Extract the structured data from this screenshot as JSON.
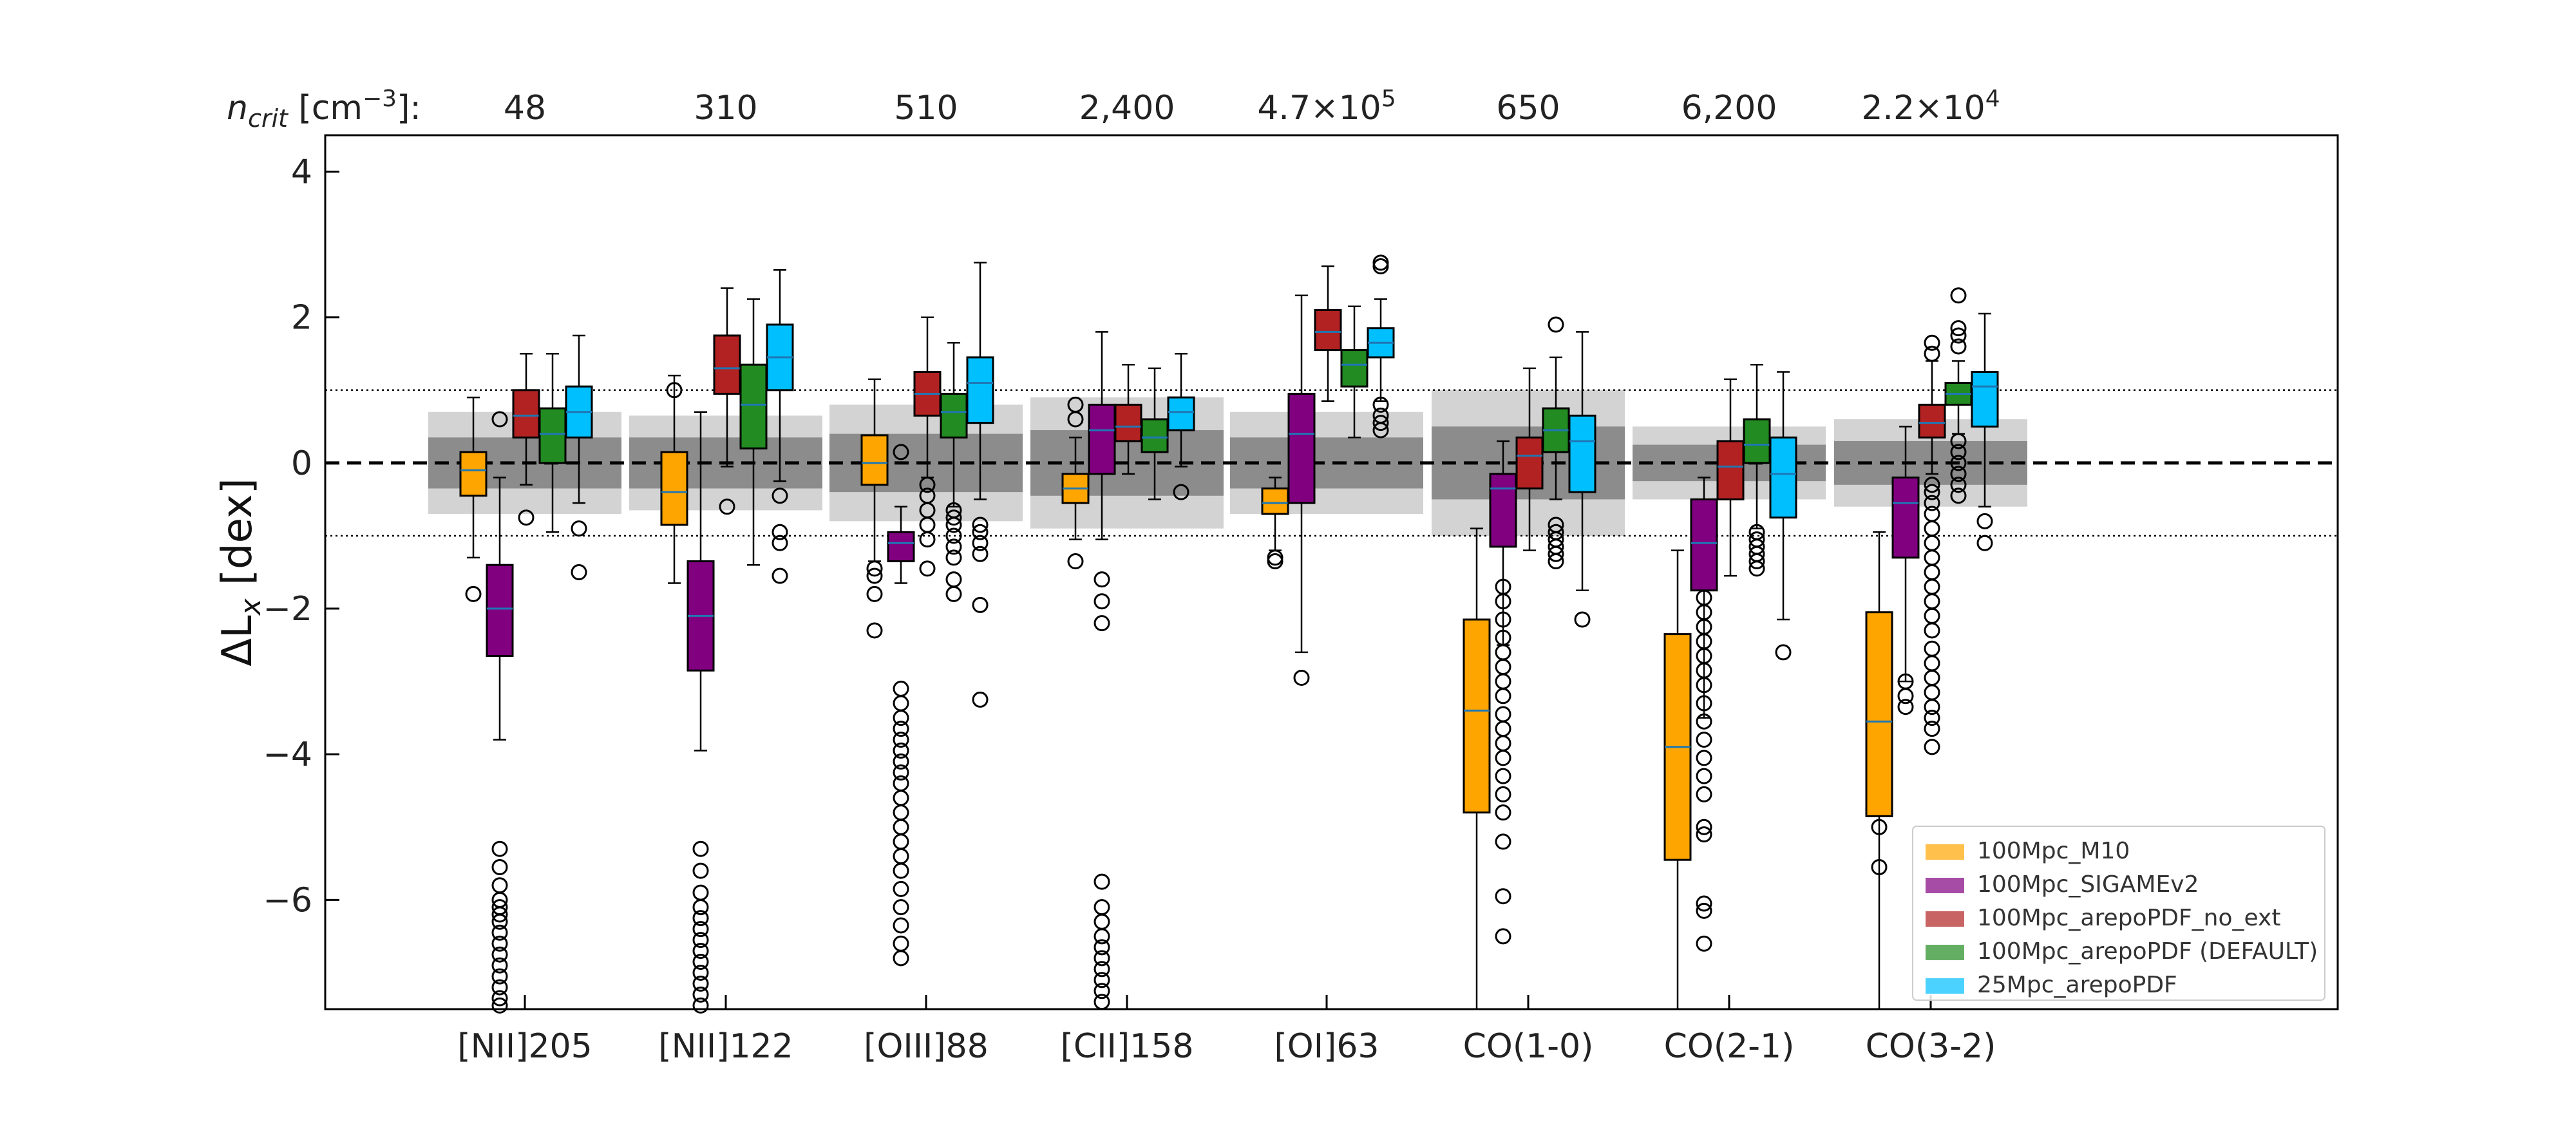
{
  "chart_data": {
    "type": "box",
    "ylabel_main": "ΔL",
    "ylabel_sub": "x",
    "ylabel_unit": " [dex]",
    "ylim": [
      -7.5,
      4.5
    ],
    "yticks": [
      4,
      2,
      0,
      -2,
      -4,
      -6
    ],
    "ytick_labels": [
      "4",
      "2",
      "0",
      "−2",
      "−4",
      "−6"
    ],
    "reference_lines": [
      {
        "y": 0,
        "style": "dashed"
      },
      {
        "y": 1,
        "style": "dotted"
      },
      {
        "y": -1,
        "style": "dotted"
      }
    ],
    "ncrit_header": {
      "prefix": "n",
      "sub": "crit",
      "unit": " [cm",
      "sup": "−3",
      "suffix": "]:"
    },
    "categories": [
      "[NII]205",
      "[NII]122",
      "[OIII]88",
      "[CII]158",
      "[OI]63",
      "CO(1-0)",
      "CO(2-1)",
      "CO(3-2)"
    ],
    "ncrit_labels": [
      {
        "base": "48",
        "exp": ""
      },
      {
        "base": "310",
        "exp": ""
      },
      {
        "base": "510",
        "exp": ""
      },
      {
        "base": "2,400",
        "exp": ""
      },
      {
        "base": "4.7×10",
        "exp": "5"
      },
      {
        "base": "650",
        "exp": ""
      },
      {
        "base": "6,200",
        "exp": ""
      },
      {
        "base": "2.2×10",
        "exp": "4"
      }
    ],
    "obs_bands": [
      {
        "inner": [
          -0.35,
          0.35
        ],
        "outer": [
          -0.7,
          0.7
        ]
      },
      {
        "inner": [
          -0.35,
          0.35
        ],
        "outer": [
          -0.65,
          0.65
        ]
      },
      {
        "inner": [
          -0.4,
          0.4
        ],
        "outer": [
          -0.8,
          0.8
        ]
      },
      {
        "inner": [
          -0.45,
          0.45
        ],
        "outer": [
          -0.9,
          0.9
        ]
      },
      {
        "inner": [
          -0.35,
          0.35
        ],
        "outer": [
          -0.7,
          0.7
        ]
      },
      {
        "inner": [
          -0.5,
          0.5
        ],
        "outer": [
          -1.0,
          1.0
        ]
      },
      {
        "inner": [
          -0.25,
          0.25
        ],
        "outer": [
          -0.5,
          0.5
        ]
      },
      {
        "inner": [
          -0.3,
          0.3
        ],
        "outer": [
          -0.6,
          0.6
        ]
      }
    ],
    "series": [
      {
        "name": "100Mpc_M10",
        "color": "#FFA500",
        "boxes": [
          {
            "q1": -0.45,
            "med": -0.1,
            "q3": 0.15,
            "wl": -1.3,
            "wh": 0.9,
            "fliers": [
              -1.8
            ]
          },
          {
            "q1": -0.85,
            "med": -0.4,
            "q3": 0.15,
            "wl": -1.65,
            "wh": 1.2,
            "fliers": [
              1.0
            ]
          },
          {
            "q1": -0.3,
            "med": 0.0,
            "q3": 0.38,
            "wl": -1.35,
            "wh": 1.15,
            "fliers": [
              -1.45,
              -1.55,
              -1.8,
              -2.3
            ]
          },
          {
            "q1": -0.55,
            "med": -0.35,
            "q3": -0.15,
            "wl": -1.05,
            "wh": 0.35,
            "fliers": [
              0.6,
              0.8,
              -1.35
            ]
          },
          {
            "q1": -0.7,
            "med": -0.55,
            "q3": -0.35,
            "wl": -1.2,
            "wh": -0.2,
            "fliers": [
              -1.3,
              -1.35
            ]
          },
          {
            "q1": -4.8,
            "med": -3.4,
            "q3": -2.15,
            "wl": -7.5,
            "wh": -0.9,
            "fliers": []
          },
          {
            "q1": -5.45,
            "med": -3.9,
            "q3": -2.35,
            "wl": -7.5,
            "wh": -1.2,
            "fliers": []
          },
          {
            "q1": -4.85,
            "med": -3.55,
            "q3": -2.05,
            "wl": -7.5,
            "wh": -0.95,
            "fliers": [
              -5.0,
              -5.55
            ]
          }
        ]
      },
      {
        "name": "100Mpc_SIGAMEv2",
        "color": "#800080",
        "boxes": [
          {
            "q1": -2.65,
            "med": -2.0,
            "q3": -1.4,
            "wl": -3.8,
            "wh": -0.2,
            "fliers": [
              0.6,
              -5.3,
              -5.55,
              -5.8,
              -6.0,
              -6.1,
              -6.2,
              -6.3,
              -6.45,
              -6.6,
              -6.75,
              -6.9,
              -7.05,
              -7.2,
              -7.35,
              -7.45
            ]
          },
          {
            "q1": -2.85,
            "med": -2.1,
            "q3": -1.35,
            "wl": -3.95,
            "wh": 0.7,
            "fliers": [
              -5.3,
              -5.6,
              -5.9,
              -6.1,
              -6.25,
              -6.4,
              -6.55,
              -6.7,
              -6.85,
              -7.0,
              -7.15,
              -7.3,
              -7.45
            ]
          },
          {
            "q1": -1.35,
            "med": -1.1,
            "q3": -0.95,
            "wl": -1.65,
            "wh": -0.6,
            "fliers": [
              0.15,
              -3.1,
              -3.3,
              -3.5,
              -3.65,
              -3.8,
              -3.95,
              -4.1,
              -4.25,
              -4.4,
              -4.6,
              -4.8,
              -5.0,
              -5.2,
              -5.4,
              -5.6,
              -5.85,
              -6.1,
              -6.35,
              -6.6,
              -6.8
            ]
          },
          {
            "q1": -0.15,
            "med": 0.45,
            "q3": 0.8,
            "wl": -1.05,
            "wh": 1.8,
            "fliers": [
              -1.6,
              -1.9,
              -2.2,
              -5.75,
              -6.1,
              -6.3,
              -6.5,
              -6.65,
              -6.8,
              -6.95,
              -7.1,
              -7.25,
              -7.4
            ]
          },
          {
            "q1": -0.55,
            "med": 0.4,
            "q3": 0.95,
            "wl": -2.6,
            "wh": 2.3,
            "fliers": [
              -2.95
            ]
          },
          {
            "q1": -1.15,
            "med": -0.35,
            "q3": -0.15,
            "wl": -2.5,
            "wh": 0.3,
            "fliers": [
              -1.7,
              -1.9,
              -2.15,
              -2.4,
              -2.6,
              -2.8,
              -3.0,
              -3.2,
              -3.45,
              -3.65,
              -3.85,
              -4.05,
              -4.3,
              -4.55,
              -4.8,
              -5.2,
              -5.95,
              -6.5
            ]
          },
          {
            "q1": -1.75,
            "med": -1.1,
            "q3": -0.5,
            "wl": -3.5,
            "wh": -0.2,
            "fliers": [
              -1.85,
              -2.05,
              -2.25,
              -2.45,
              -2.65,
              -2.85,
              -3.05,
              -3.3,
              -3.55,
              -3.8,
              -4.05,
              -4.3,
              -4.55,
              -5.0,
              -5.1,
              -6.05,
              -6.15,
              -6.6
            ]
          },
          {
            "q1": -1.3,
            "med": -0.55,
            "q3": -0.2,
            "wl": -3.0,
            "wh": 0.5,
            "fliers": [
              -3.0,
              -3.2,
              -3.35
            ]
          }
        ]
      },
      {
        "name": "100Mpc_arepoPDF_no_ext",
        "color": "#B22222",
        "boxes": [
          {
            "q1": 0.35,
            "med": 0.65,
            "q3": 1.0,
            "wl": -0.3,
            "wh": 1.5,
            "fliers": [
              -0.75
            ]
          },
          {
            "q1": 0.95,
            "med": 1.3,
            "q3": 1.75,
            "wl": -0.05,
            "wh": 2.4,
            "fliers": [
              -0.6
            ]
          },
          {
            "q1": 0.65,
            "med": 0.95,
            "q3": 1.25,
            "wl": -0.2,
            "wh": 2.0,
            "fliers": [
              -0.3,
              -0.45,
              -0.65,
              -0.85,
              -1.05,
              -1.45
            ]
          },
          {
            "q1": 0.3,
            "med": 0.5,
            "q3": 0.8,
            "wl": -0.15,
            "wh": 1.35,
            "fliers": []
          },
          {
            "q1": 1.55,
            "med": 1.8,
            "q3": 2.1,
            "wl": 0.85,
            "wh": 2.7,
            "fliers": []
          },
          {
            "q1": -0.35,
            "med": 0.1,
            "q3": 0.35,
            "wl": -1.2,
            "wh": 1.3,
            "fliers": []
          },
          {
            "q1": -0.5,
            "med": -0.05,
            "q3": 0.3,
            "wl": -1.55,
            "wh": 1.15,
            "fliers": []
          },
          {
            "q1": 0.35,
            "med": 0.55,
            "q3": 0.8,
            "wl": -0.15,
            "wh": 1.4,
            "fliers": [
              -0.3,
              -0.4,
              -0.55,
              -0.7,
              -0.9,
              -1.1,
              -1.3,
              -1.5,
              -1.7,
              -1.9,
              -2.1,
              -2.3,
              -2.55,
              -2.75,
              -2.95,
              -3.15,
              -3.35,
              -3.5,
              -3.65,
              -3.9,
              1.5,
              1.65
            ]
          }
        ]
      },
      {
        "name": "100Mpc_arepoPDF (DEFAULT)",
        "color": "#228B22",
        "boxes": [
          {
            "q1": 0.0,
            "med": 0.4,
            "q3": 0.75,
            "wl": -0.95,
            "wh": 1.5,
            "fliers": []
          },
          {
            "q1": 0.2,
            "med": 0.8,
            "q3": 1.35,
            "wl": -1.4,
            "wh": 2.25,
            "fliers": []
          },
          {
            "q1": 0.35,
            "med": 0.7,
            "q3": 0.95,
            "wl": -0.6,
            "wh": 1.65,
            "fliers": [
              -0.65,
              -0.75,
              -0.85,
              -1.0,
              -1.15,
              -1.3,
              -1.6,
              -1.8
            ]
          },
          {
            "q1": 0.15,
            "med": 0.35,
            "q3": 0.6,
            "wl": -0.5,
            "wh": 1.3,
            "fliers": []
          },
          {
            "q1": 1.05,
            "med": 1.35,
            "q3": 1.55,
            "wl": 0.35,
            "wh": 2.15,
            "fliers": []
          },
          {
            "q1": 0.15,
            "med": 0.45,
            "q3": 0.75,
            "wl": -0.5,
            "wh": 1.45,
            "fliers": [
              -0.85,
              -0.95,
              -1.05,
              -1.15,
              -1.25,
              -1.35,
              1.9
            ]
          },
          {
            "q1": 0.0,
            "med": 0.25,
            "q3": 0.6,
            "wl": -0.9,
            "wh": 1.35,
            "fliers": [
              -0.95,
              -1.05,
              -1.15,
              -1.25,
              -1.35,
              -1.45
            ]
          },
          {
            "q1": 0.8,
            "med": 0.95,
            "q3": 1.1,
            "wl": 0.4,
            "wh": 1.4,
            "fliers": [
              0.3,
              0.15,
              0.0,
              -0.15,
              -0.3,
              -0.45,
              1.6,
              1.75,
              1.85,
              2.3
            ]
          }
        ]
      },
      {
        "name": "25Mpc_arepoPDF",
        "color": "#00BFFF",
        "boxes": [
          {
            "q1": 0.35,
            "med": 0.7,
            "q3": 1.05,
            "wl": -0.55,
            "wh": 1.75,
            "fliers": [
              -0.9,
              -1.5
            ]
          },
          {
            "q1": 1.0,
            "med": 1.45,
            "q3": 1.9,
            "wl": -0.25,
            "wh": 2.65,
            "fliers": [
              -0.45,
              -0.95,
              -1.1,
              -1.55
            ]
          },
          {
            "q1": 0.55,
            "med": 1.1,
            "q3": 1.45,
            "wl": -0.5,
            "wh": 2.75,
            "fliers": [
              -0.85,
              -0.95,
              -1.1,
              -1.25,
              -1.95,
              -3.25
            ]
          },
          {
            "q1": 0.45,
            "med": 0.7,
            "q3": 0.9,
            "wl": -0.05,
            "wh": 1.5,
            "fliers": [
              -0.4
            ]
          },
          {
            "q1": 1.45,
            "med": 1.65,
            "q3": 1.85,
            "wl": 0.85,
            "wh": 2.25,
            "fliers": [
              0.8,
              0.65,
              0.55,
              0.45,
              2.7,
              2.75
            ]
          },
          {
            "q1": -0.4,
            "med": 0.3,
            "q3": 0.65,
            "wl": -1.75,
            "wh": 1.8,
            "fliers": [
              -2.15
            ]
          },
          {
            "q1": -0.75,
            "med": -0.15,
            "q3": 0.35,
            "wl": -2.15,
            "wh": 1.25,
            "fliers": [
              -2.6
            ]
          },
          {
            "q1": 0.5,
            "med": 1.05,
            "q3": 1.25,
            "wl": -0.6,
            "wh": 2.05,
            "fliers": [
              -0.8,
              -1.1
            ]
          }
        ]
      }
    ],
    "legend_position": "lower-right",
    "grid": false
  }
}
